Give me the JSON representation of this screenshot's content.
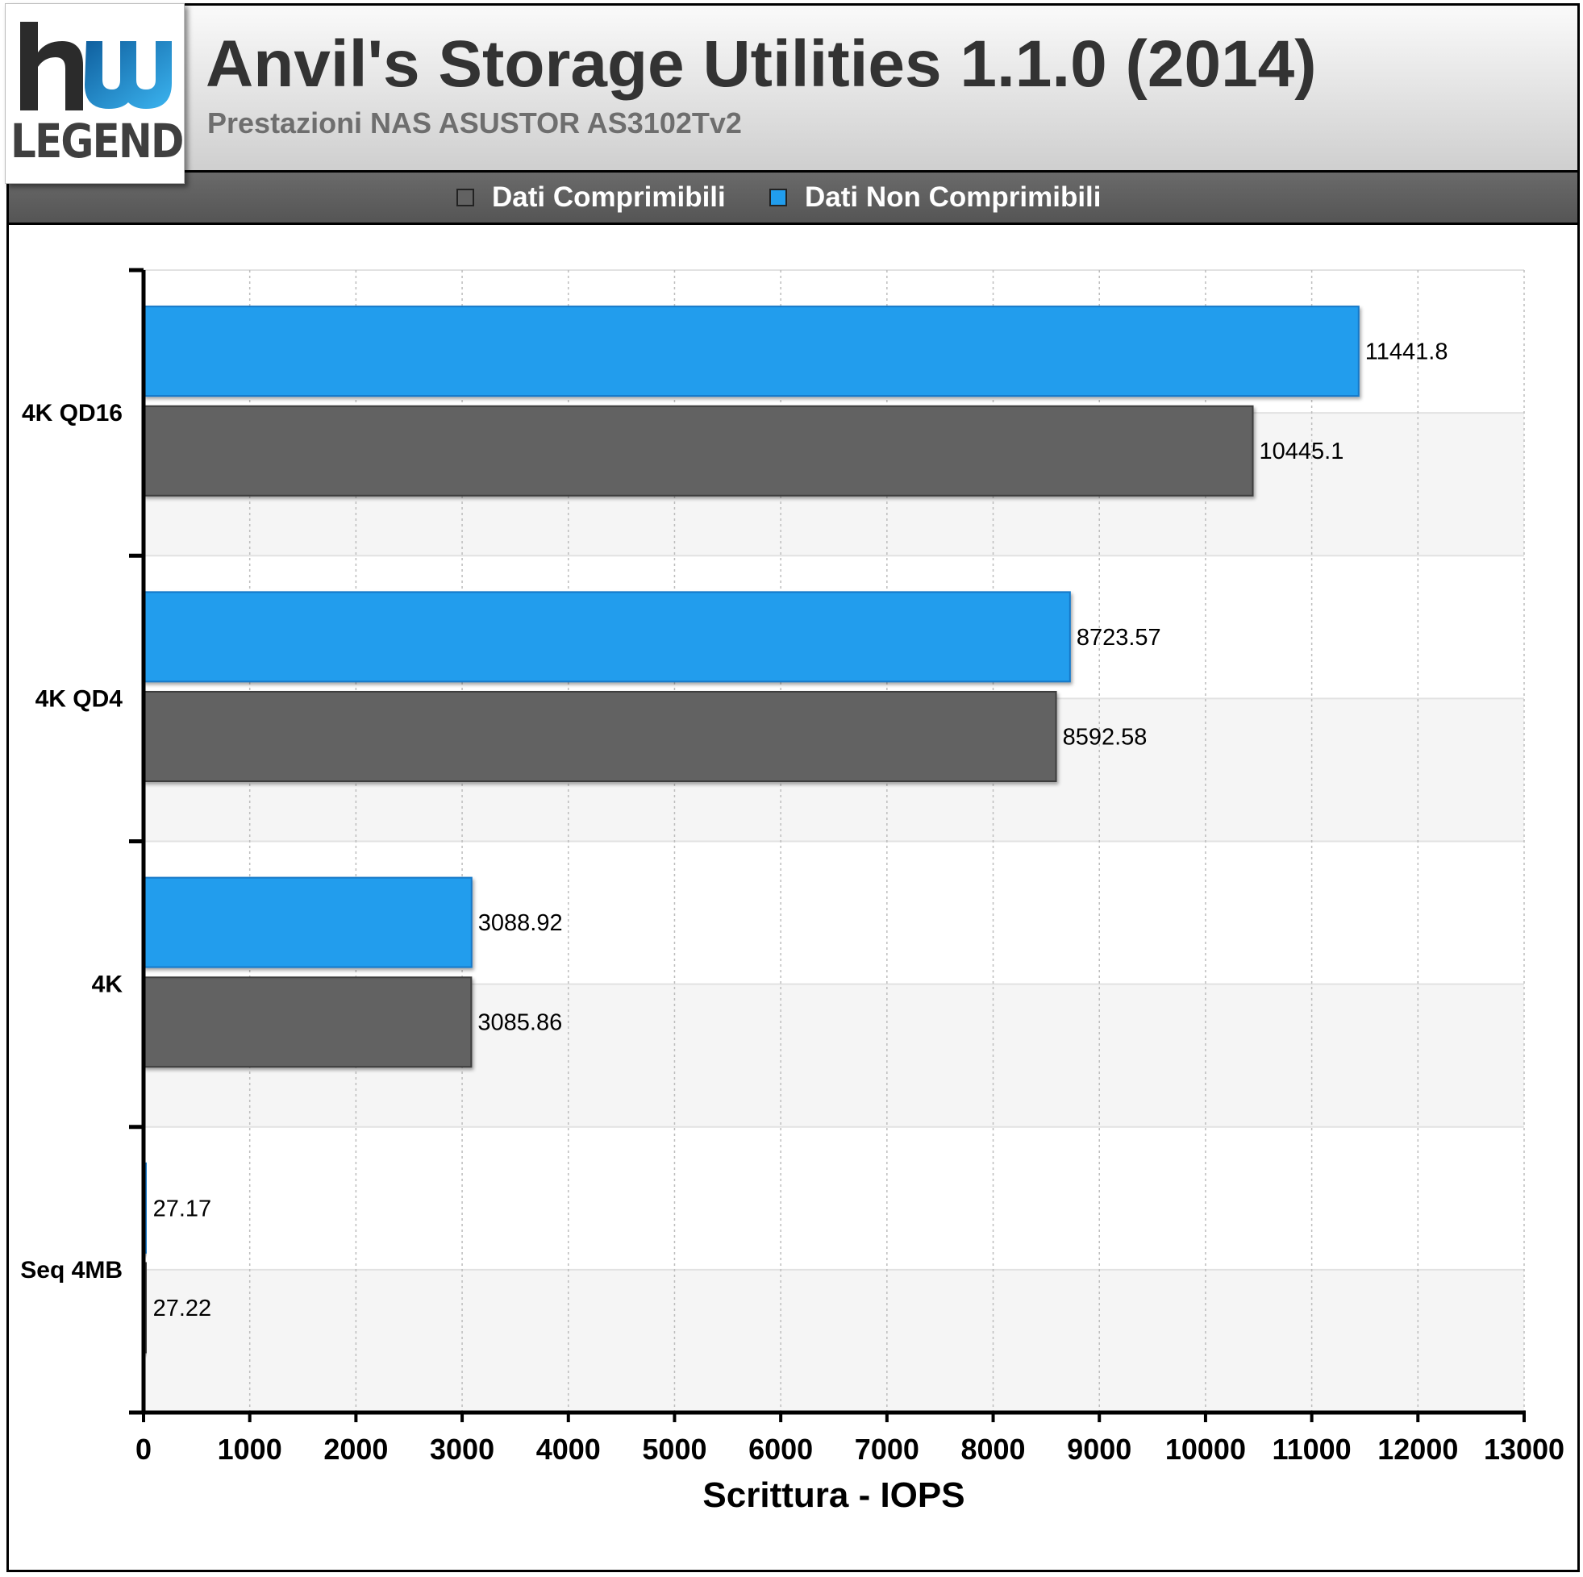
{
  "logo": {
    "brand": "LEGEND",
    "brand_colors": [
      "#2b2b2b",
      "#1b86c6"
    ]
  },
  "header": {
    "title": "Anvil's Storage Utilities 1.1.0 (2014)",
    "subtitle": "Prestazioni NAS ASUSTOR AS3102Tv2"
  },
  "legend": {
    "items": [
      {
        "label": "Dati Comprimibili",
        "color": "#626262"
      },
      {
        "label": "Dati Non Comprimibili",
        "color": "#219ded"
      }
    ]
  },
  "chart_data": {
    "type": "bar",
    "orientation": "horizontal",
    "categories": [
      "4K QD16",
      "4K QD4",
      "4K",
      "Seq 4MB"
    ],
    "series": [
      {
        "name": "Dati Non Comprimibili",
        "color": "#219ded",
        "values": [
          11441.8,
          8723.57,
          3088.92,
          27.17
        ]
      },
      {
        "name": "Dati Comprimibili",
        "color": "#626262",
        "values": [
          10445.1,
          8592.58,
          3085.86,
          27.22
        ]
      }
    ],
    "value_labels": {
      "Dati Non Comprimibili": [
        "11441.8",
        "8723.57",
        "3088.92",
        "27.17"
      ],
      "Dati Comprimibili": [
        "10445.1",
        "8592.58",
        "3085.86",
        "27.22"
      ]
    },
    "xlabel": "Scrittura - IOPS",
    "xlim": [
      0,
      13000
    ],
    "xticks": [
      "0",
      "1000",
      "2000",
      "3000",
      "4000",
      "5000",
      "6000",
      "7000",
      "8000",
      "9000",
      "10000",
      "11000",
      "12000",
      "13000"
    ],
    "grid": true,
    "legend_position": "top"
  }
}
